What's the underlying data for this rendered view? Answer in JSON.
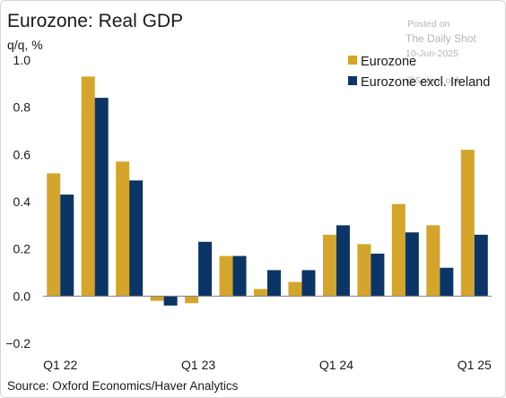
{
  "chart_data": {
    "type": "bar",
    "title": "Eurozone: Real GDP",
    "ylabel": "q/q, %",
    "ylim": [
      -0.2,
      1.0
    ],
    "yticks": [
      "−0.2",
      "0.0",
      "0.2",
      "0.4",
      "0.6",
      "0.8",
      "1.0"
    ],
    "yticks_values": [
      -0.2,
      0.0,
      0.2,
      0.4,
      0.6,
      0.8,
      1.0
    ],
    "categories": [
      "Q1 22",
      "Q2 22",
      "Q3 22",
      "Q4 22",
      "Q1 23",
      "Q2 23",
      "Q3 23",
      "Q4 23",
      "Q1 24",
      "Q2 24",
      "Q3 24",
      "Q4 24",
      "Q1 25"
    ],
    "xtick_labels": [
      "Q1 22",
      "Q1 23",
      "Q1 24",
      "Q1 25"
    ],
    "series": [
      {
        "name": "Eurozone",
        "color": "#d4a52a",
        "values": [
          0.52,
          0.93,
          0.57,
          -0.02,
          -0.03,
          0.17,
          0.03,
          0.06,
          0.26,
          0.22,
          0.39,
          0.3,
          0.62
        ]
      },
      {
        "name": "Eurozone excl. Ireland",
        "color": "#0b3566",
        "values": [
          0.43,
          0.84,
          0.49,
          -0.04,
          0.23,
          0.17,
          0.11,
          0.11,
          0.3,
          0.18,
          0.27,
          0.12,
          0.26
        ]
      }
    ],
    "legend": "top-right",
    "grid": false
  },
  "source": "Source: Oxford Economics/Haver Analytics",
  "watermark": {
    "line1": "Posted on",
    "line2": "The Daily Shot",
    "line3": "10-Jun-2025",
    "line4": "@SoberLook"
  }
}
